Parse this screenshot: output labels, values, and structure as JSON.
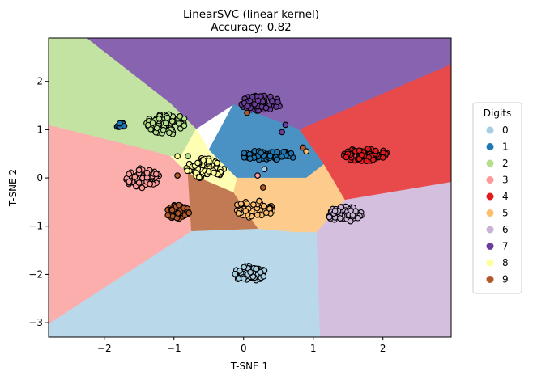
{
  "chart_data": {
    "type": "scatter",
    "title_line1": "LinearSVC (linear kernel)",
    "title_line2": "Accuracy: 0.82",
    "xlabel": "T-SNE 1",
    "ylabel": "T-SNE 2",
    "xlim": [
      -2.8,
      2.98
    ],
    "ylim": [
      -3.3,
      2.9
    ],
    "xticks": [
      -2,
      -1,
      0,
      1,
      2
    ],
    "yticks": [
      -3,
      -2,
      -1,
      0,
      1,
      2
    ],
    "legend": {
      "title": "Digits",
      "placement": "outside-right",
      "entries": [
        "0",
        "1",
        "2",
        "3",
        "4",
        "5",
        "6",
        "7",
        "8",
        "9"
      ]
    },
    "class_colors": [
      "#a6cee3",
      "#1f78b4",
      "#b2df8a",
      "#fb9a99",
      "#e31a1c",
      "#fdbf6f",
      "#cab2d6",
      "#6a3d9a",
      "#ffff99",
      "#b15928"
    ],
    "region_colors": [
      "#b9d8ea",
      "#4a91c4",
      "#c3e3a3",
      "#fbaeac",
      "#e84a4c",
      "#fdcc8c",
      "#d5bfdf",
      "#8864b0",
      "#ffffb3",
      "#c17a53"
    ],
    "decision_regions": [
      {
        "class": "0",
        "polygon": [
          [
            -2.8,
            -3.02
          ],
          [
            -0.75,
            -1.1
          ],
          [
            0.2,
            -1.05
          ],
          [
            0.75,
            -1.12
          ],
          [
            1.05,
            -1.12
          ],
          [
            1.1,
            -3.3
          ],
          [
            -2.8,
            -3.3
          ]
        ]
      },
      {
        "class": "6",
        "polygon": [
          [
            1.05,
            -1.12
          ],
          [
            1.45,
            -0.45
          ],
          [
            2.98,
            -0.08
          ],
          [
            2.98,
            -3.3
          ],
          [
            1.1,
            -3.3
          ]
        ]
      },
      {
        "class": "3",
        "polygon": [
          [
            -2.8,
            1.1
          ],
          [
            -1.35,
            0.58
          ],
          [
            -1.05,
            0.45
          ],
          [
            -0.8,
            0.1
          ],
          [
            -0.75,
            -1.1
          ],
          [
            -2.8,
            -3.02
          ]
        ]
      },
      {
        "class": "2",
        "polygon": [
          [
            -2.8,
            2.9
          ],
          [
            -2.25,
            2.9
          ],
          [
            -1.05,
            1.55
          ],
          [
            -0.68,
            1.02
          ],
          [
            -0.9,
            0.45
          ],
          [
            -1.05,
            0.45
          ],
          [
            -1.35,
            0.58
          ],
          [
            -2.8,
            1.1
          ]
        ]
      },
      {
        "class": "7",
        "polygon": [
          [
            -2.25,
            2.9
          ],
          [
            2.98,
            2.9
          ],
          [
            2.98,
            2.35
          ],
          [
            0.8,
            1.0
          ],
          [
            -0.15,
            1.52
          ],
          [
            -0.68,
            1.02
          ],
          [
            -1.05,
            1.55
          ]
        ]
      },
      {
        "class": "4",
        "polygon": [
          [
            0.8,
            1.0
          ],
          [
            2.98,
            2.35
          ],
          [
            2.98,
            -0.08
          ],
          [
            1.45,
            -0.45
          ],
          [
            1.15,
            0.28
          ]
        ]
      },
      {
        "class": "1",
        "polygon": [
          [
            -0.5,
            0.58
          ],
          [
            -0.15,
            1.52
          ],
          [
            0.8,
            1.0
          ],
          [
            1.15,
            0.28
          ],
          [
            0.9,
            0.0
          ],
          [
            -0.1,
            0.0
          ]
        ]
      },
      {
        "class": "5",
        "polygon": [
          [
            -0.1,
            0.0
          ],
          [
            0.9,
            0.0
          ],
          [
            1.15,
            0.28
          ],
          [
            1.45,
            -0.45
          ],
          [
            1.05,
            -1.12
          ],
          [
            0.75,
            -1.12
          ],
          [
            0.2,
            -1.05
          ],
          [
            -0.15,
            -0.3
          ]
        ]
      },
      {
        "class": "8",
        "polygon": [
          [
            -1.05,
            0.45
          ],
          [
            -0.9,
            0.45
          ],
          [
            -0.68,
            1.02
          ],
          [
            -0.5,
            0.58
          ],
          [
            -0.1,
            0.0
          ],
          [
            -0.15,
            -0.3
          ],
          [
            -0.8,
            0.1
          ]
        ]
      },
      {
        "class": "9",
        "polygon": [
          [
            -0.8,
            0.1
          ],
          [
            -0.15,
            -0.3
          ],
          [
            0.2,
            -1.05
          ],
          [
            -0.75,
            -1.1
          ]
        ]
      }
    ],
    "clusters": [
      {
        "class": "1",
        "cx": -1.77,
        "cy": 1.1,
        "rx": 0.07,
        "ry": 0.05,
        "n": 14
      },
      {
        "class": "2",
        "cx": -1.1,
        "cy": 1.12,
        "rx": 0.3,
        "ry": 0.22,
        "n": 70
      },
      {
        "class": "7",
        "cx": 0.25,
        "cy": 1.55,
        "rx": 0.3,
        "ry": 0.16,
        "n": 60
      },
      {
        "class": "4",
        "cx": 1.75,
        "cy": 0.48,
        "rx": 0.32,
        "ry": 0.14,
        "n": 70
      },
      {
        "class": "1",
        "cx": 0.35,
        "cy": 0.47,
        "rx": 0.42,
        "ry": 0.1,
        "n": 55
      },
      {
        "class": "8",
        "cx": -0.55,
        "cy": 0.2,
        "rx": 0.27,
        "ry": 0.22,
        "n": 65
      },
      {
        "class": "3",
        "cx": -1.45,
        "cy": 0.0,
        "rx": 0.25,
        "ry": 0.22,
        "n": 65
      },
      {
        "class": "9",
        "cx": -0.95,
        "cy": -0.7,
        "rx": 0.17,
        "ry": 0.15,
        "n": 55
      },
      {
        "class": "5",
        "cx": 0.15,
        "cy": -0.65,
        "rx": 0.3,
        "ry": 0.18,
        "n": 55
      },
      {
        "class": "6",
        "cx": 1.45,
        "cy": -0.75,
        "rx": 0.25,
        "ry": 0.17,
        "n": 60
      },
      {
        "class": "0",
        "cx": 0.08,
        "cy": -1.98,
        "rx": 0.24,
        "ry": 0.16,
        "n": 65
      }
    ],
    "stray_points": [
      {
        "class": "9",
        "x": 0.05,
        "y": 1.35
      },
      {
        "class": "7",
        "x": 0.55,
        "y": 0.95
      },
      {
        "class": "7",
        "x": 0.6,
        "y": 1.1
      },
      {
        "class": "9",
        "x": 0.85,
        "y": 0.63
      },
      {
        "class": "5",
        "x": 0.9,
        "y": 0.55
      },
      {
        "class": "2",
        "x": -0.8,
        "y": 0.45
      },
      {
        "class": "8",
        "x": -0.95,
        "y": 0.45
      },
      {
        "class": "9",
        "x": -0.95,
        "y": 0.05
      },
      {
        "class": "0",
        "x": 0.3,
        "y": 0.18
      },
      {
        "class": "3",
        "x": 0.2,
        "y": 0.05
      },
      {
        "class": "9",
        "x": 0.28,
        "y": -0.2
      }
    ]
  }
}
